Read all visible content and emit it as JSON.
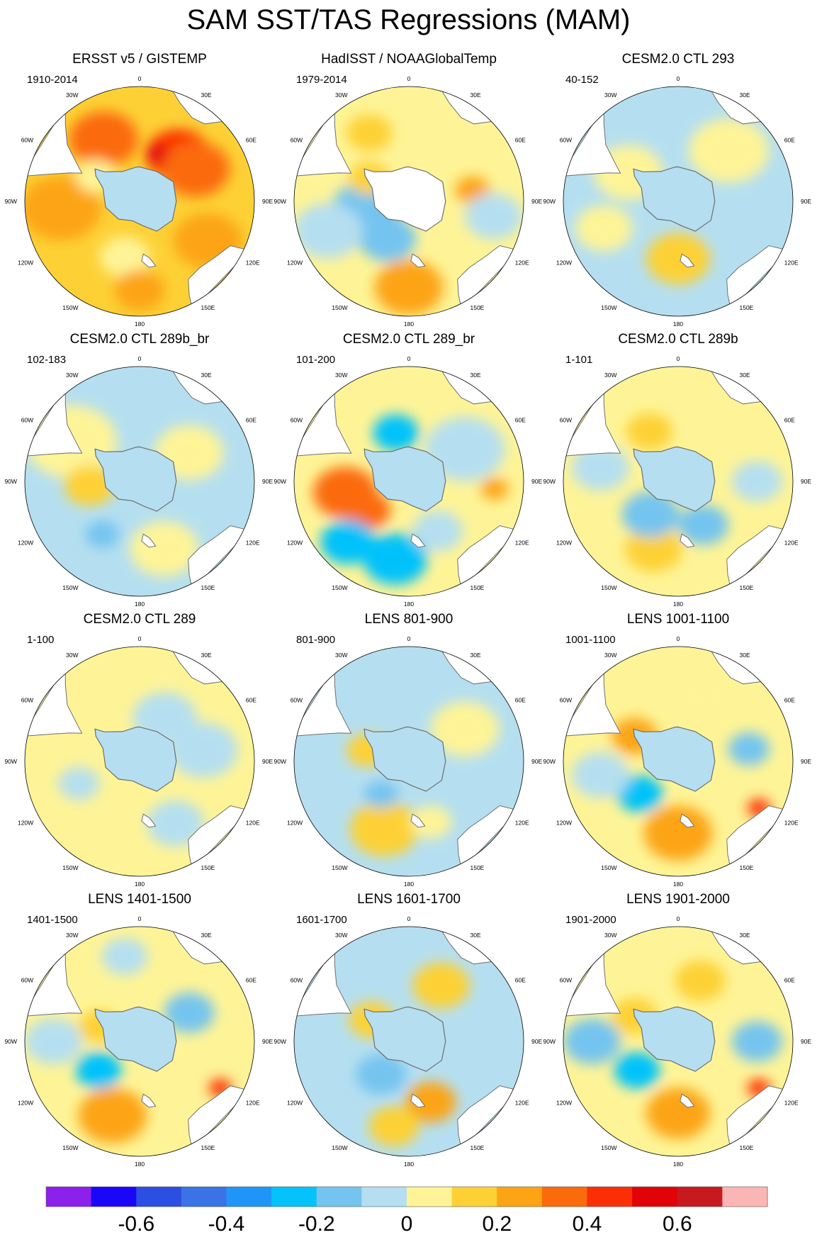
{
  "title": "SAM SST/TAS Regressions (MAM)",
  "lon_labels": [
    "0",
    "30E",
    "60E",
    "90E",
    "120E",
    "150E",
    "180",
    "150W",
    "120W",
    "90W",
    "60W",
    "30W"
  ],
  "palette": {
    "levels": [
      -0.7,
      -0.6,
      -0.5,
      -0.4,
      -0.3,
      -0.2,
      -0.1,
      0,
      0.1,
      0.2,
      0.3,
      0.4,
      0.5,
      0.6,
      0.7
    ],
    "colors": [
      "#8d21eb",
      "#1b07f7",
      "#2d4ee3",
      "#3a73e6",
      "#1f96f7",
      "#06c2fa",
      "#74c4ef",
      "#b5dff0",
      "#fef497",
      "#fdd136",
      "#fca413",
      "#fb6a0b",
      "#fb2e06",
      "#e10307",
      "#c8191f",
      "#fcb5b5"
    ],
    "land": "#ffffff",
    "coast": "#6e6e6e"
  },
  "chart_data": {
    "type": "heatmap",
    "variable": "SST/TAS regression on SAM index",
    "season": "MAM",
    "colorbar": {
      "tick_labels": [
        "-0.6",
        "-0.4",
        "-0.2",
        "0",
        "0.2",
        "0.4",
        "0.6"
      ],
      "tick_values": [
        -0.6,
        -0.4,
        -0.2,
        0,
        0.2,
        0.4,
        0.6
      ]
    },
    "panels": [
      {
        "title": "ERSST v5 / GISTEMP",
        "years": "1910-2014",
        "background": 0.15,
        "antarctica": -0.05,
        "blobs": [
          {
            "lon": 330,
            "lat": -40,
            "value": 0.35,
            "r": 0.3
          },
          {
            "lon": 40,
            "lat": -48,
            "value": 0.45,
            "r": 0.28
          },
          {
            "lon": 60,
            "lat": -45,
            "value": 0.35,
            "r": 0.3
          },
          {
            "lon": 265,
            "lat": -35,
            "value": 0.25,
            "r": 0.35
          },
          {
            "lon": 120,
            "lat": -35,
            "value": 0.25,
            "r": 0.3
          },
          {
            "lon": 195,
            "lat": -50,
            "value": 0.05,
            "r": 0.22
          },
          {
            "lon": 180,
            "lat": -28,
            "value": 0.25,
            "r": 0.22
          },
          {
            "lon": 20,
            "lat": -55,
            "value": 0.55,
            "r": 0.1
          },
          {
            "lon": 300,
            "lat": -55,
            "value": 0.05,
            "r": 0.18
          }
        ]
      },
      {
        "title": "HadISST / NOAAGlobalTemp",
        "years": "1979-2014",
        "background": 0.05,
        "antarctica": null,
        "blobs": [
          {
            "lon": 260,
            "lat": -60,
            "value": -0.12,
            "r": 0.3
          },
          {
            "lon": 210,
            "lat": -60,
            "value": -0.15,
            "r": 0.25
          },
          {
            "lon": 180,
            "lat": -30,
            "value": 0.22,
            "r": 0.3
          },
          {
            "lon": 300,
            "lat": -58,
            "value": 0.18,
            "r": 0.18
          },
          {
            "lon": 80,
            "lat": -45,
            "value": 0.2,
            "r": 0.15
          },
          {
            "lon": 330,
            "lat": -35,
            "value": 0.12,
            "r": 0.2
          },
          {
            "lon": 100,
            "lat": -30,
            "value": -0.1,
            "r": 0.25
          },
          {
            "lon": 250,
            "lat": -30,
            "value": -0.05,
            "r": 0.3
          }
        ]
      },
      {
        "title": "CESM2.0 CTL 293",
        "years": "40-152",
        "background": -0.05,
        "antarctica": -0.05,
        "blobs": [
          {
            "lon": 300,
            "lat": -50,
            "value": 0.08,
            "r": 0.3
          },
          {
            "lon": 180,
            "lat": -50,
            "value": 0.12,
            "r": 0.28
          },
          {
            "lon": 45,
            "lat": -40,
            "value": 0.05,
            "r": 0.35
          },
          {
            "lon": 250,
            "lat": -35,
            "value": 0.05,
            "r": 0.25
          }
        ]
      },
      {
        "title": "CESM2.0 CTL 289b_br",
        "years": "102-183",
        "background": -0.05,
        "antarctica": -0.05,
        "blobs": [
          {
            "lon": 300,
            "lat": -35,
            "value": 0.08,
            "r": 0.4
          },
          {
            "lon": 265,
            "lat": -55,
            "value": 0.15,
            "r": 0.22
          },
          {
            "lon": 60,
            "lat": -50,
            "value": 0.05,
            "r": 0.3
          },
          {
            "lon": 160,
            "lat": -40,
            "value": 0.08,
            "r": 0.3
          },
          {
            "lon": 215,
            "lat": -45,
            "value": -0.12,
            "r": 0.15
          }
        ]
      },
      {
        "title": "CESM2.0 CTL 289_br",
        "years": "101-200",
        "background": 0.05,
        "antarctica": -0.05,
        "blobs": [
          {
            "lon": 260,
            "lat": -45,
            "value": 0.35,
            "r": 0.28
          },
          {
            "lon": 235,
            "lat": -55,
            "value": 0.3,
            "r": 0.2
          },
          {
            "lon": 225,
            "lat": -30,
            "value": -0.3,
            "r": 0.24
          },
          {
            "lon": 190,
            "lat": -35,
            "value": -0.25,
            "r": 0.28
          },
          {
            "lon": 345,
            "lat": -55,
            "value": -0.3,
            "r": 0.2
          },
          {
            "lon": 60,
            "lat": -45,
            "value": -0.05,
            "r": 0.35
          },
          {
            "lon": 95,
            "lat": -30,
            "value": 0.2,
            "r": 0.12
          },
          {
            "lon": 150,
            "lat": -50,
            "value": -0.08,
            "r": 0.22
          }
        ]
      },
      {
        "title": "CESM2.0 CTL 289b",
        "years": "1-101",
        "background": 0.05,
        "antarctica": -0.05,
        "blobs": [
          {
            "lon": 200,
            "lat": -40,
            "value": 0.18,
            "r": 0.25
          },
          {
            "lon": 220,
            "lat": -60,
            "value": -0.12,
            "r": 0.25
          },
          {
            "lon": 150,
            "lat": -55,
            "value": -0.12,
            "r": 0.22
          },
          {
            "lon": 330,
            "lat": -50,
            "value": 0.12,
            "r": 0.2
          },
          {
            "lon": 90,
            "lat": -35,
            "value": -0.1,
            "r": 0.22
          },
          {
            "lon": 280,
            "lat": -35,
            "value": -0.08,
            "r": 0.25
          }
        ]
      },
      {
        "title": "CESM2.0 CTL 289",
        "years": "1-100",
        "background": 0.05,
        "antarctica": -0.05,
        "blobs": [
          {
            "lon": 30,
            "lat": -55,
            "value": -0.08,
            "r": 0.28
          },
          {
            "lon": 80,
            "lat": -45,
            "value": -0.08,
            "r": 0.3
          },
          {
            "lon": 250,
            "lat": -45,
            "value": -0.1,
            "r": 0.18
          },
          {
            "lon": 150,
            "lat": -40,
            "value": -0.08,
            "r": 0.25
          }
        ]
      },
      {
        "title": "LENS 801-900",
        "years": "801-900",
        "background": -0.05,
        "antarctica": -0.05,
        "blobs": [
          {
            "lon": 60,
            "lat": -45,
            "value": 0.08,
            "r": 0.3
          },
          {
            "lon": 285,
            "lat": -60,
            "value": 0.15,
            "r": 0.18
          },
          {
            "lon": 200,
            "lat": -40,
            "value": 0.1,
            "r": 0.3
          },
          {
            "lon": 220,
            "lat": -60,
            "value": -0.12,
            "r": 0.15
          },
          {
            "lon": 160,
            "lat": -45,
            "value": 0.08,
            "r": 0.18
          }
        ]
      },
      {
        "title": "LENS 1001-1100",
        "years": "1001-1100",
        "background": 0.05,
        "antarctica": -0.05,
        "blobs": [
          {
            "lon": 230,
            "lat": -55,
            "value": -0.25,
            "r": 0.2
          },
          {
            "lon": 300,
            "lat": -55,
            "value": 0.25,
            "r": 0.2
          },
          {
            "lon": 180,
            "lat": -40,
            "value": 0.25,
            "r": 0.3
          },
          {
            "lon": 120,
            "lat": -25,
            "value": 0.4,
            "r": 0.1
          },
          {
            "lon": 80,
            "lat": -40,
            "value": -0.15,
            "r": 0.18
          },
          {
            "lon": 260,
            "lat": -35,
            "value": -0.1,
            "r": 0.25
          },
          {
            "lon": 20,
            "lat": -40,
            "value": 0.08,
            "r": 0.25
          }
        ]
      },
      {
        "title": "LENS 1401-1500",
        "years": "1401-1500",
        "background": 0.05,
        "antarctica": -0.05,
        "blobs": [
          {
            "lon": 235,
            "lat": -55,
            "value": -0.3,
            "r": 0.2
          },
          {
            "lon": 200,
            "lat": -35,
            "value": 0.2,
            "r": 0.3
          },
          {
            "lon": 120,
            "lat": -25,
            "value": 0.4,
            "r": 0.1
          },
          {
            "lon": 290,
            "lat": -60,
            "value": 0.15,
            "r": 0.18
          },
          {
            "lon": 60,
            "lat": -50,
            "value": -0.12,
            "r": 0.22
          },
          {
            "lon": 270,
            "lat": -30,
            "value": -0.1,
            "r": 0.25
          },
          {
            "lon": 350,
            "lat": -30,
            "value": -0.08,
            "r": 0.2
          }
        ]
      },
      {
        "title": "LENS 1601-1700",
        "years": "1601-1700",
        "background": -0.05,
        "antarctica": -0.05,
        "blobs": [
          {
            "lon": 220,
            "lat": -60,
            "value": -0.15,
            "r": 0.22
          },
          {
            "lon": 160,
            "lat": -45,
            "value": 0.2,
            "r": 0.22
          },
          {
            "lon": 300,
            "lat": -60,
            "value": 0.12,
            "r": 0.2
          },
          {
            "lon": 30,
            "lat": -45,
            "value": 0.1,
            "r": 0.25
          },
          {
            "lon": 190,
            "lat": -30,
            "value": 0.12,
            "r": 0.22
          }
        ]
      },
      {
        "title": "LENS 1901-2000",
        "years": "1901-2000",
        "background": 0.05,
        "antarctica": -0.05,
        "blobs": [
          {
            "lon": 235,
            "lat": -55,
            "value": -0.3,
            "r": 0.2
          },
          {
            "lon": 180,
            "lat": -40,
            "value": 0.22,
            "r": 0.28
          },
          {
            "lon": 120,
            "lat": -25,
            "value": 0.4,
            "r": 0.1
          },
          {
            "lon": 300,
            "lat": -55,
            "value": 0.18,
            "r": 0.2
          },
          {
            "lon": 90,
            "lat": -35,
            "value": -0.12,
            "r": 0.22
          },
          {
            "lon": 270,
            "lat": -30,
            "value": -0.12,
            "r": 0.25
          },
          {
            "lon": 20,
            "lat": -45,
            "value": 0.1,
            "r": 0.22
          }
        ]
      }
    ]
  }
}
